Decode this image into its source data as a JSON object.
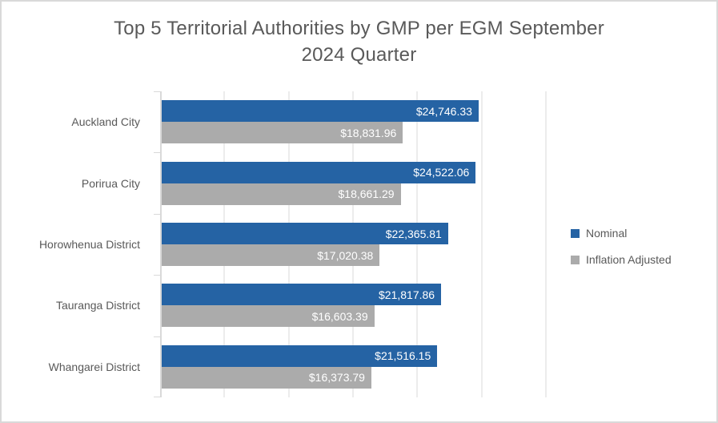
{
  "title_lines": [
    "Top 5 Territorial Authorities by GMP per EGM September",
    "2024 Quarter"
  ],
  "chart_data": {
    "type": "bar",
    "orientation": "horizontal",
    "title": "Top 5 Territorial Authorities by GMP per EGM September 2024 Quarter",
    "categories": [
      "Auckland City",
      "Porirua City",
      "Horowhenua District",
      "Tauranga District",
      "Whangarei District"
    ],
    "series": [
      {
        "name": "Nominal",
        "color": "#2563A4",
        "values": [
          24746.33,
          24522.06,
          22365.81,
          21817.86,
          21516.15
        ],
        "labels": [
          "$24,746.33",
          "$24,522.06",
          "$22,365.81",
          "$21,817.86",
          "$21,516.15"
        ]
      },
      {
        "name": "Inflation Adjusted",
        "color": "#ABABAB",
        "values": [
          18831.96,
          18661.29,
          17020.38,
          16603.39,
          16373.79
        ],
        "labels": [
          "$18,831.96",
          "$18,661.29",
          "$17,020.38",
          "$16,603.39",
          "$16,373.79"
        ]
      }
    ],
    "xlim": [
      0,
      30000
    ],
    "gridline_step": 5000,
    "grid": true,
    "legend_position": "right",
    "data_labels": "inside-end",
    "xlabel": "",
    "ylabel": ""
  },
  "legend": {
    "items": [
      {
        "label": "Nominal",
        "color": "#2563A4"
      },
      {
        "label": "Inflation Adjusted",
        "color": "#ABABAB"
      }
    ]
  },
  "colors": {
    "frame_border": "#D9D9D9",
    "gridline": "#D9D9D9",
    "title_text": "#595959",
    "axis_text": "#595959",
    "data_label_text": "#FFFFFF",
    "background": "#FFFFFF"
  }
}
